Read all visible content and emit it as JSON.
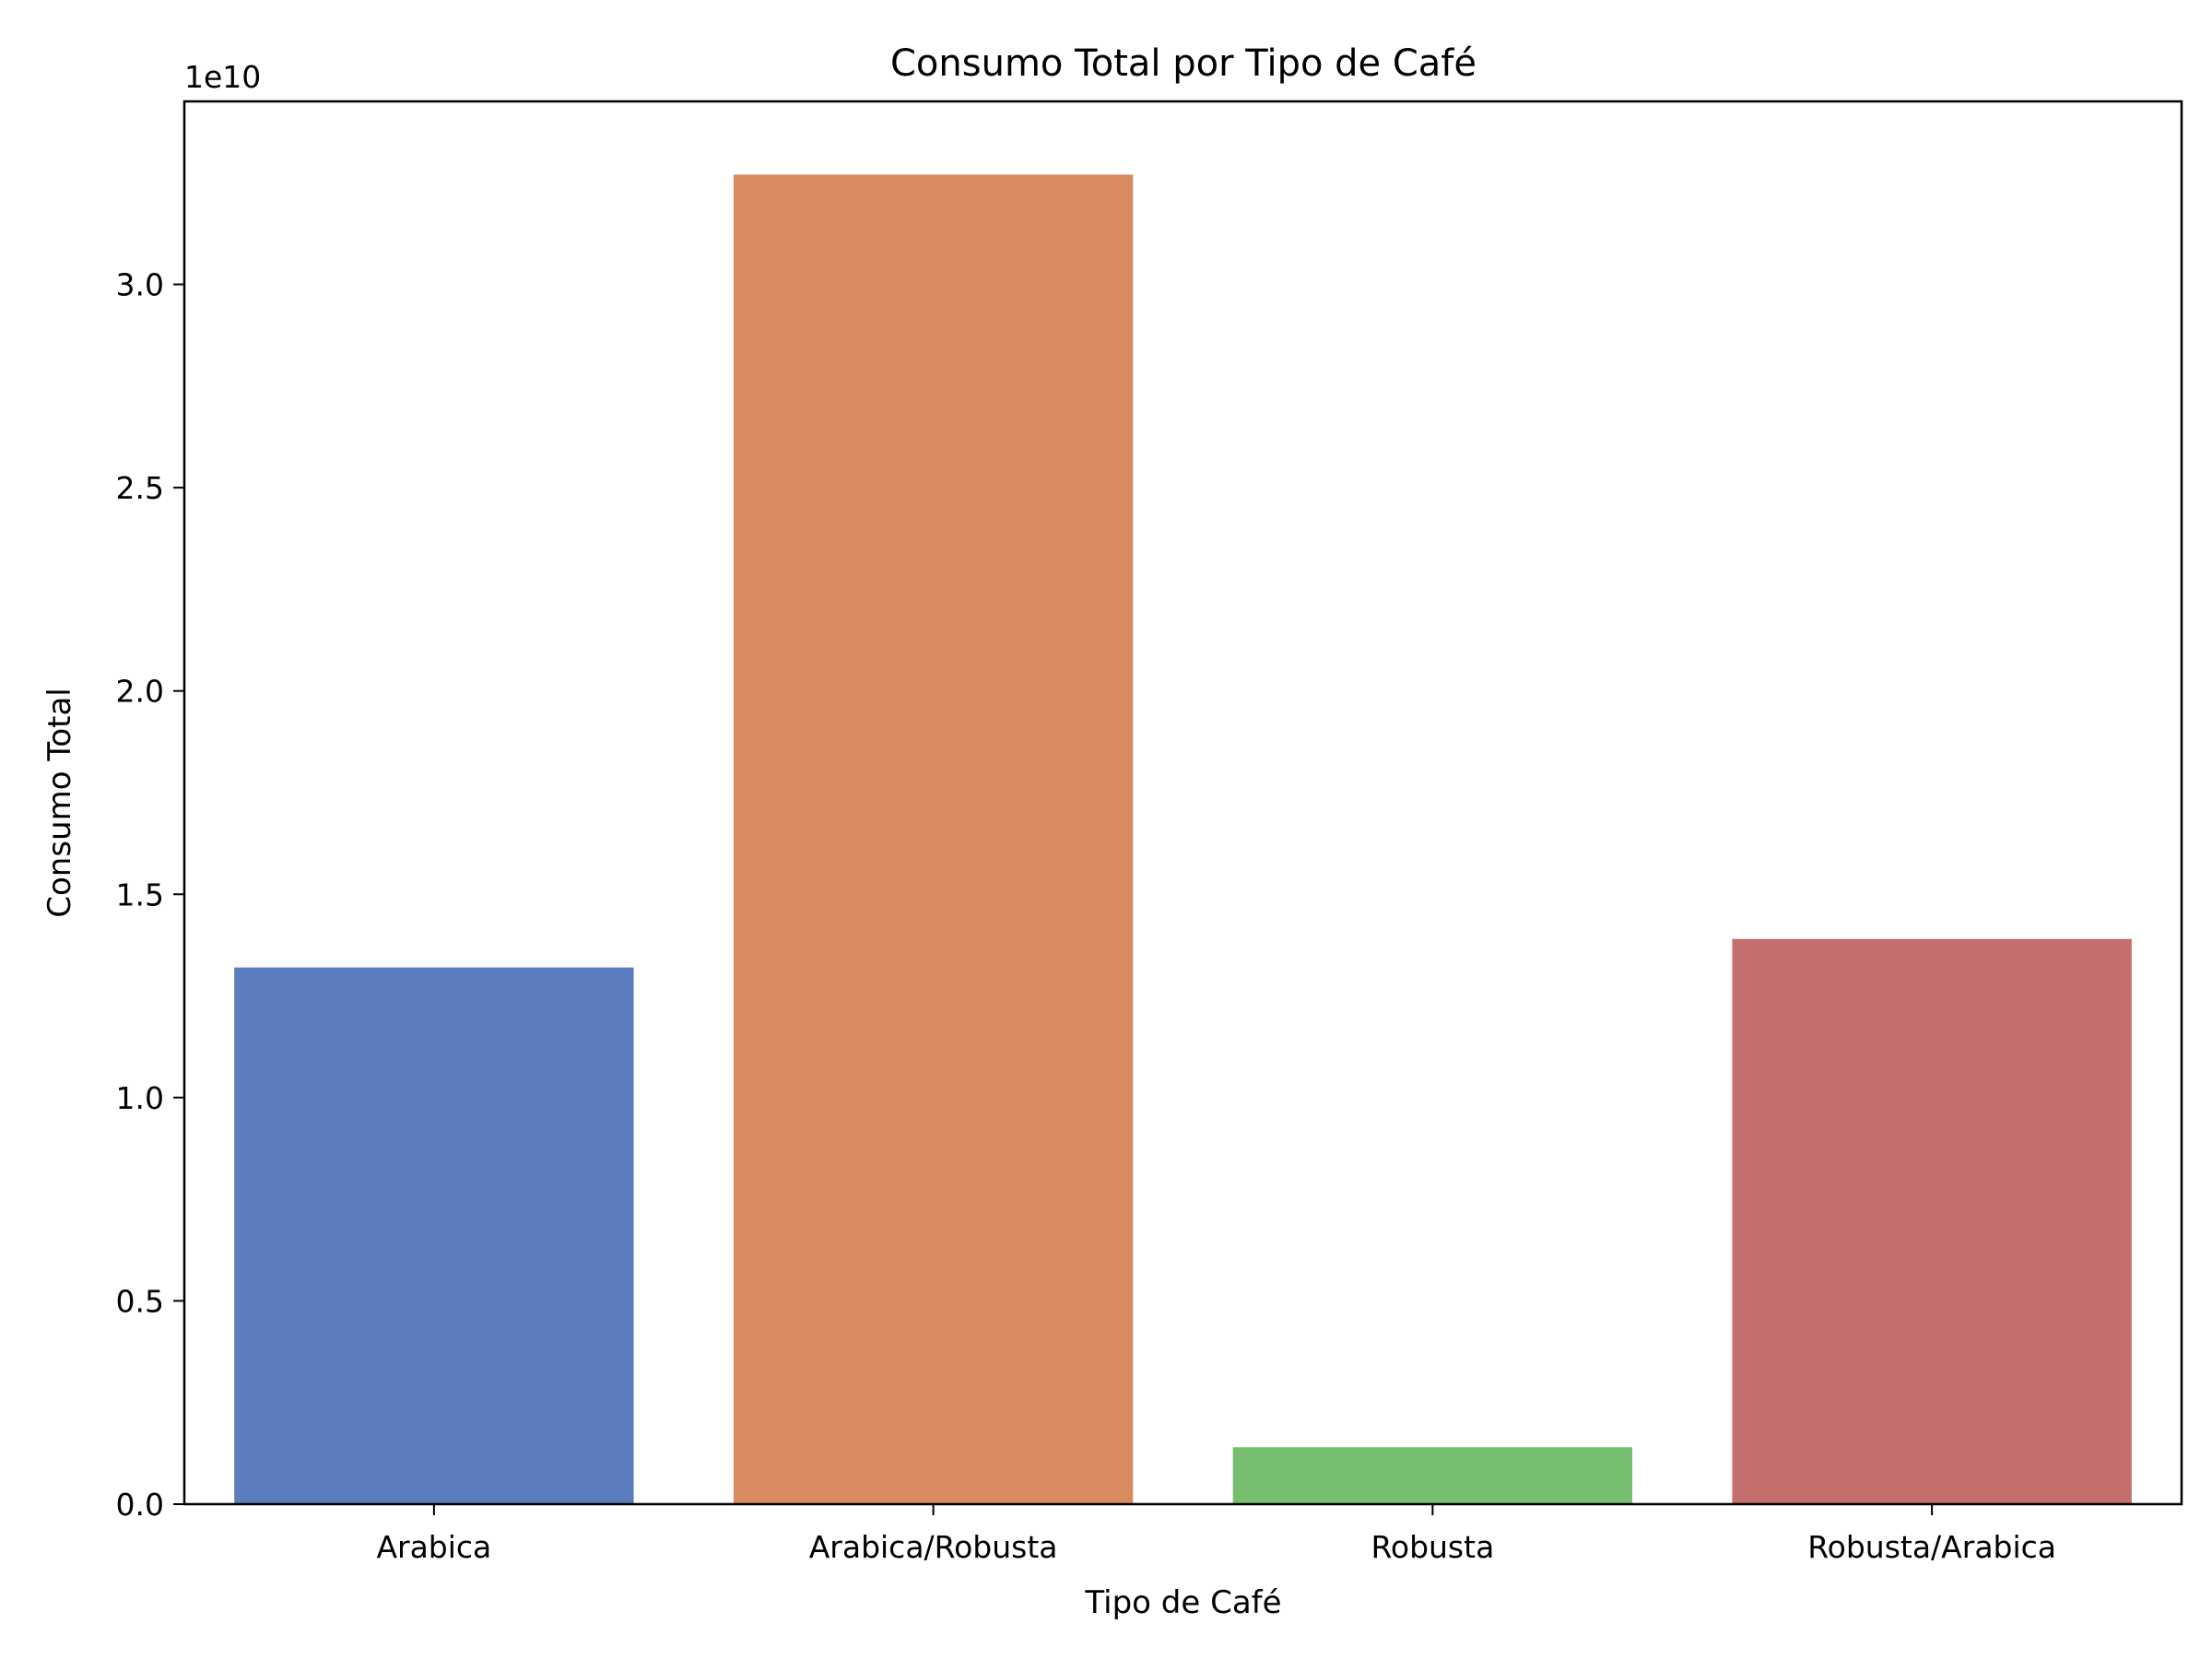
{
  "chart_data": {
    "type": "bar",
    "title": "Consumo Total por Tipo de Café",
    "xlabel": "Tipo de Café",
    "ylabel": "Consumo Total",
    "y_offset_label": "1e10",
    "categories": [
      "Arabica",
      "Arabica/Robusta",
      "Robusta",
      "Robusta/Arabica"
    ],
    "values": [
      13200000000,
      32700000000,
      1400000000,
      13900000000
    ],
    "colors": [
      "#5b7dbe",
      "#d98b60",
      "#77bf6f",
      "#c56e6e"
    ],
    "ylim": [
      0,
      34500000000
    ],
    "yticks": [
      0,
      5000000000,
      10000000000,
      15000000000,
      20000000000,
      25000000000,
      30000000000
    ],
    "ytick_labels": [
      "0.0",
      "0.5",
      "1.0",
      "1.5",
      "2.0",
      "2.5",
      "3.0"
    ],
    "grid": false,
    "legend": "none"
  }
}
